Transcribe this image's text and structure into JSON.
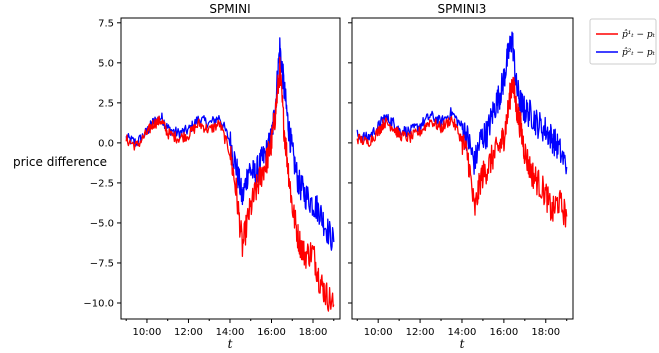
{
  "chart_data": {
    "type": "line",
    "ylabel": "price difference",
    "xlabel": "t",
    "xlim": [
      8.75,
      19.3
    ],
    "ylim": [
      -11.0,
      7.8
    ],
    "x_ticks": [
      10,
      12,
      14,
      16,
      18
    ],
    "x_tick_labels": [
      "10:00",
      "12:00",
      "14:00",
      "16:00",
      "18:00"
    ],
    "y_ticks": [
      -10.0,
      -7.5,
      -5.0,
      -2.5,
      0.0,
      2.5,
      5.0,
      7.5
    ],
    "y_tick_labels": [
      "−10.0",
      "−7.5",
      "−5.0",
      "−2.5",
      "0.0",
      "2.5",
      "5.0",
      "7.5"
    ],
    "legend": {
      "placement": "outside-right",
      "entries": [
        {
          "label": "p̂¹ₜ − pₜ",
          "color": "#ff0000"
        },
        {
          "label": "p̂²ₜ − pₜ",
          "color": "#0000ff"
        }
      ]
    },
    "panels": [
      {
        "title": "SPMINI",
        "series": [
          {
            "color": "#0000ff",
            "x": [
              9.0,
              9.5,
              10.0,
              10.3,
              10.7,
              11.0,
              11.5,
              12.0,
              12.5,
              13.0,
              13.5,
              14.0,
              14.3,
              14.6,
              14.9,
              15.2,
              15.5,
              15.8,
              16.0,
              16.2,
              16.4,
              16.6,
              16.8,
              17.0,
              17.3,
              17.6,
              18.0,
              18.3,
              18.6,
              19.0
            ],
            "y": [
              0.3,
              0.0,
              0.7,
              1.3,
              1.6,
              0.9,
              0.6,
              0.8,
              1.5,
              1.2,
              1.6,
              0.1,
              -1.5,
              -3.5,
              -1.6,
              -2.0,
              -1.2,
              -0.5,
              0.3,
              2.5,
              6.0,
              3.5,
              1.2,
              -0.6,
              -2.5,
              -3.2,
              -3.8,
              -4.2,
              -5.2,
              -6.2
            ]
          },
          {
            "color": "#ff0000",
            "x": [
              9.0,
              9.5,
              10.0,
              10.3,
              10.7,
              11.0,
              11.5,
              12.0,
              12.5,
              13.0,
              13.5,
              14.0,
              14.3,
              14.6,
              14.9,
              15.2,
              15.5,
              15.8,
              16.0,
              16.2,
              16.4,
              16.6,
              16.8,
              17.0,
              17.3,
              17.6,
              18.0,
              18.3,
              18.6,
              19.0
            ],
            "y": [
              0.2,
              -0.2,
              0.6,
              1.2,
              1.4,
              0.6,
              0.3,
              0.5,
              1.2,
              0.8,
              1.2,
              -0.6,
              -3.0,
              -6.5,
              -4.5,
              -3.2,
              -2.0,
              -1.0,
              0.0,
              2.0,
              4.5,
              1.0,
              -1.5,
              -4.0,
              -6.0,
              -7.0,
              -6.8,
              -8.5,
              -9.4,
              -10.1
            ]
          }
        ]
      },
      {
        "title": "SPMINI3",
        "series": [
          {
            "color": "#0000ff",
            "x": [
              9.0,
              9.5,
              10.0,
              10.3,
              10.7,
              11.0,
              11.5,
              12.0,
              12.5,
              13.0,
              13.5,
              14.0,
              14.3,
              14.6,
              14.9,
              15.2,
              15.5,
              15.8,
              16.0,
              16.2,
              16.4,
              16.6,
              16.8,
              17.0,
              17.3,
              17.6,
              18.0,
              18.3,
              18.6,
              19.0
            ],
            "y": [
              0.5,
              0.3,
              1.0,
              1.6,
              1.3,
              0.8,
              0.7,
              1.1,
              1.7,
              1.3,
              1.9,
              1.0,
              0.2,
              -1.3,
              0.3,
              0.6,
              2.0,
              3.0,
              4.0,
              5.5,
              6.6,
              3.5,
              2.5,
              2.0,
              1.8,
              1.2,
              0.8,
              0.3,
              -0.3,
              -1.5
            ]
          },
          {
            "color": "#ff0000",
            "x": [
              9.0,
              9.5,
              10.0,
              10.3,
              10.7,
              11.0,
              11.5,
              12.0,
              12.5,
              13.0,
              13.5,
              14.0,
              14.3,
              14.6,
              14.9,
              15.2,
              15.5,
              15.8,
              16.0,
              16.2,
              16.4,
              16.6,
              16.8,
              17.0,
              17.3,
              17.6,
              18.0,
              18.3,
              18.6,
              19.0
            ],
            "y": [
              0.3,
              0.0,
              0.7,
              1.3,
              1.0,
              0.5,
              0.3,
              0.7,
              1.4,
              0.9,
              1.5,
              0.2,
              -1.0,
              -4.3,
              -2.2,
              -1.6,
              -0.8,
              -0.2,
              0.4,
              2.0,
              4.0,
              2.2,
              1.0,
              -0.6,
              -1.8,
              -2.4,
              -3.2,
              -4.4,
              -3.6,
              -4.6
            ]
          }
        ]
      }
    ]
  }
}
